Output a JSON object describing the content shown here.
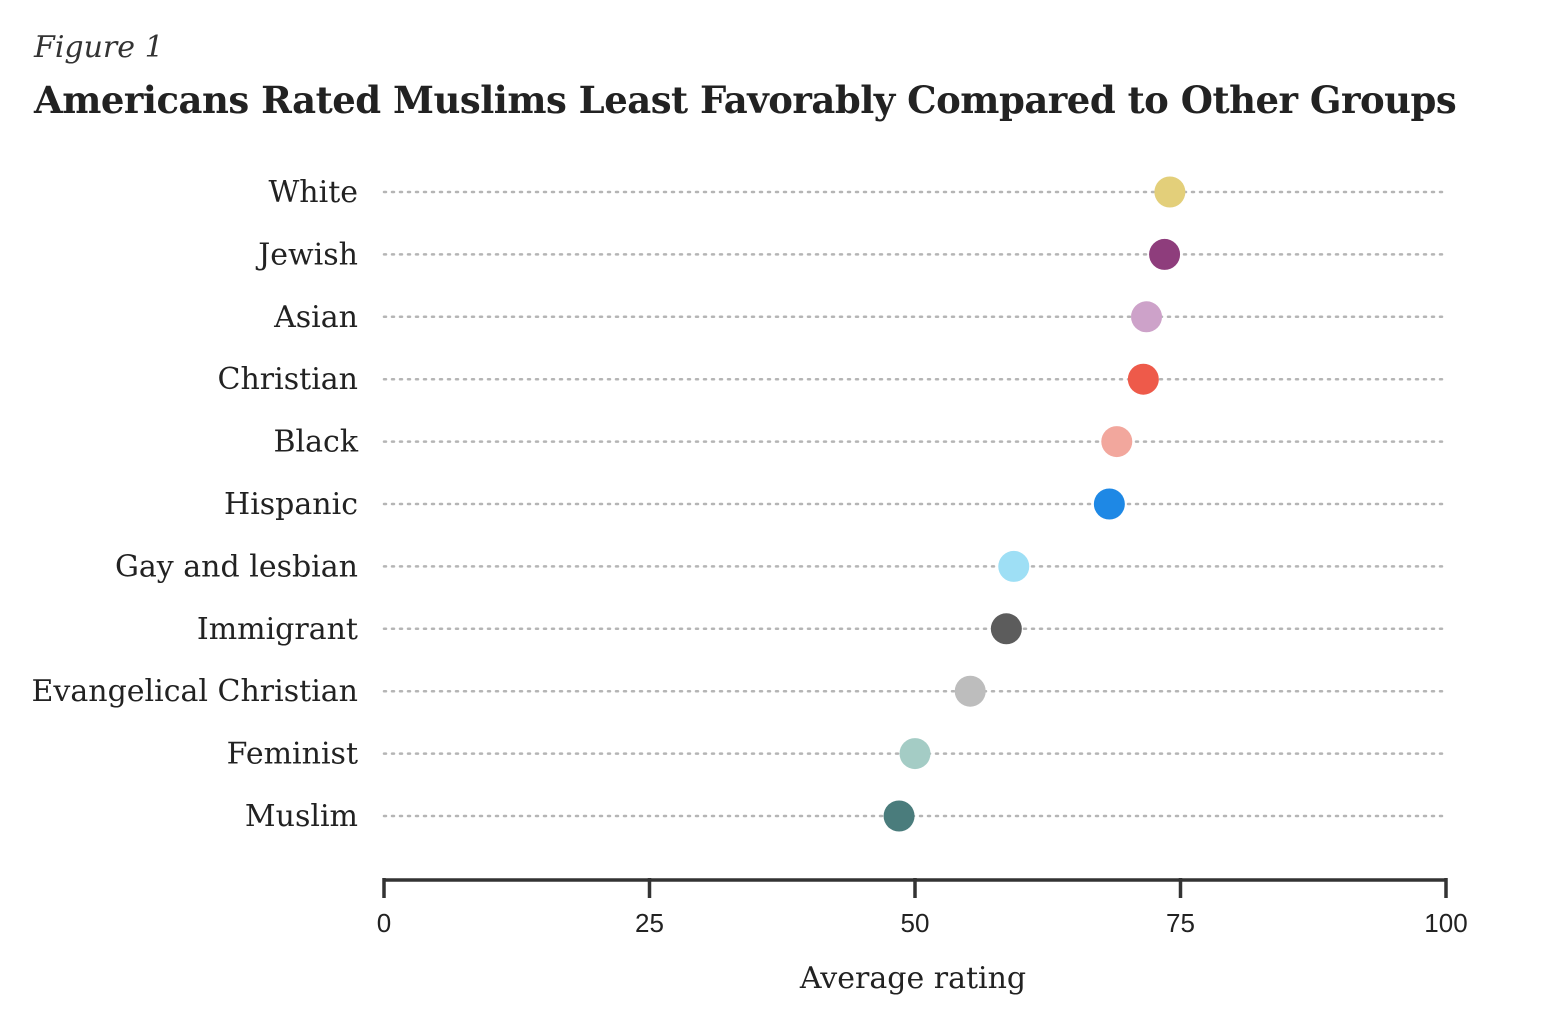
{
  "figure_label": "Figure 1",
  "chart_data": {
    "type": "scatter",
    "style": "dot-plot",
    "title": "Americans Rated Muslims Least Favorably Compared to Other Groups",
    "xlabel": "Average rating",
    "ylabel": "",
    "xlim": [
      0,
      100
    ],
    "xticks": [
      0,
      25,
      50,
      75,
      100
    ],
    "categories": [
      "White",
      "Jewish",
      "Asian",
      "Christian",
      "Black",
      "Hispanic",
      "Gay and lesbian",
      "Immigrant",
      "Evangelical Christian",
      "Feminist",
      "Muslim"
    ],
    "values": [
      74,
      73.5,
      71.8,
      71.5,
      69,
      68.3,
      59.3,
      58.6,
      55.2,
      50,
      48.5
    ],
    "colors": [
      "#e3cf7a",
      "#8e3d7c",
      "#cda2c9",
      "#ee5a4a",
      "#f2a79d",
      "#1e88e5",
      "#9edff5",
      "#5c5c5c",
      "#bdbdbd",
      "#a4ccc5",
      "#4a7c7c"
    ],
    "grid": "dotted horizontal guide per row"
  }
}
